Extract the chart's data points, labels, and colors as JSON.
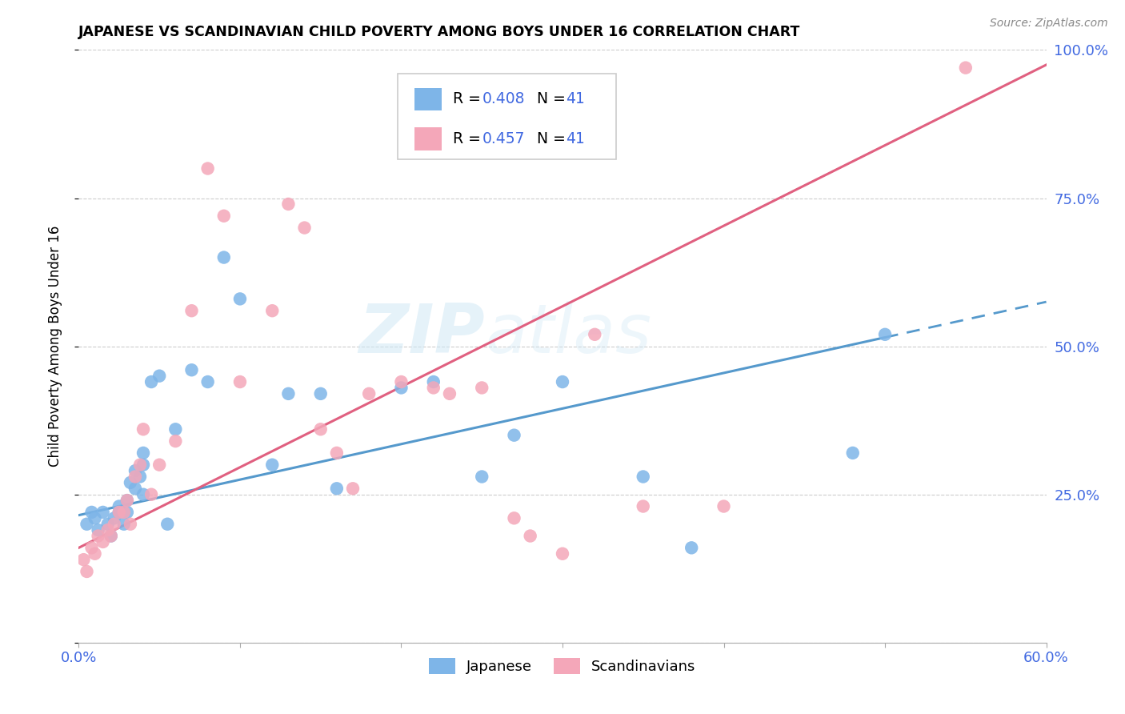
{
  "title": "JAPANESE VS SCANDINAVIAN CHILD POVERTY AMONG BOYS UNDER 16 CORRELATION CHART",
  "source": "Source: ZipAtlas.com",
  "ylabel": "Child Poverty Among Boys Under 16",
  "xlim": [
    0.0,
    0.6
  ],
  "ylim": [
    0.0,
    1.0
  ],
  "xticks": [
    0.0,
    0.1,
    0.2,
    0.3,
    0.4,
    0.5,
    0.6
  ],
  "xticklabels": [
    "0.0%",
    "",
    "",
    "",
    "",
    "",
    "60.0%"
  ],
  "yticks": [
    0.0,
    0.25,
    0.5,
    0.75,
    1.0
  ],
  "ytick_left_labels": [
    "",
    "",
    "",
    "",
    ""
  ],
  "ytick_right_labels": [
    "",
    "25.0%",
    "50.0%",
    "75.0%",
    "100.0%"
  ],
  "color_japanese": "#7EB5E8",
  "color_scandinavian": "#F4A7B9",
  "color_trendline_japanese": "#5599CC",
  "color_trendline_scandinavian": "#E06080",
  "color_r_value": "#4169E1",
  "watermark_zip": "ZIP",
  "watermark_atlas": "atlas",
  "japanese_x": [
    0.005,
    0.008,
    0.01,
    0.012,
    0.015,
    0.018,
    0.02,
    0.022,
    0.025,
    0.025,
    0.028,
    0.03,
    0.03,
    0.032,
    0.035,
    0.035,
    0.038,
    0.04,
    0.04,
    0.04,
    0.045,
    0.05,
    0.055,
    0.06,
    0.07,
    0.08,
    0.09,
    0.1,
    0.12,
    0.13,
    0.15,
    0.16,
    0.2,
    0.22,
    0.25,
    0.27,
    0.3,
    0.35,
    0.38,
    0.48,
    0.5
  ],
  "japanese_y": [
    0.2,
    0.22,
    0.21,
    0.19,
    0.22,
    0.2,
    0.18,
    0.21,
    0.23,
    0.22,
    0.2,
    0.24,
    0.22,
    0.27,
    0.26,
    0.29,
    0.28,
    0.3,
    0.25,
    0.32,
    0.44,
    0.45,
    0.2,
    0.36,
    0.46,
    0.44,
    0.65,
    0.58,
    0.3,
    0.42,
    0.42,
    0.26,
    0.43,
    0.44,
    0.28,
    0.35,
    0.44,
    0.28,
    0.16,
    0.32,
    0.52
  ],
  "scandinavian_x": [
    0.003,
    0.005,
    0.008,
    0.01,
    0.012,
    0.015,
    0.018,
    0.02,
    0.022,
    0.025,
    0.028,
    0.03,
    0.032,
    0.035,
    0.038,
    0.04,
    0.045,
    0.05,
    0.06,
    0.07,
    0.08,
    0.09,
    0.1,
    0.12,
    0.13,
    0.14,
    0.15,
    0.16,
    0.17,
    0.18,
    0.2,
    0.22,
    0.23,
    0.25,
    0.27,
    0.28,
    0.3,
    0.32,
    0.35,
    0.4,
    0.55
  ],
  "scandinavian_y": [
    0.14,
    0.12,
    0.16,
    0.15,
    0.18,
    0.17,
    0.19,
    0.18,
    0.2,
    0.22,
    0.22,
    0.24,
    0.2,
    0.28,
    0.3,
    0.36,
    0.25,
    0.3,
    0.34,
    0.56,
    0.8,
    0.72,
    0.44,
    0.56,
    0.74,
    0.7,
    0.36,
    0.32,
    0.26,
    0.42,
    0.44,
    0.43,
    0.42,
    0.43,
    0.21,
    0.18,
    0.15,
    0.52,
    0.23,
    0.23,
    0.97
  ],
  "trend_j_x0": 0.0,
  "trend_j_y0": 0.215,
  "trend_j_x1": 0.5,
  "trend_j_y1": 0.515,
  "trend_j_dash_x1": 0.6,
  "trend_j_dash_y1": 0.575,
  "trend_s_x0": 0.0,
  "trend_s_y0": 0.16,
  "trend_s_x1": 0.6,
  "trend_s_y1": 0.975
}
